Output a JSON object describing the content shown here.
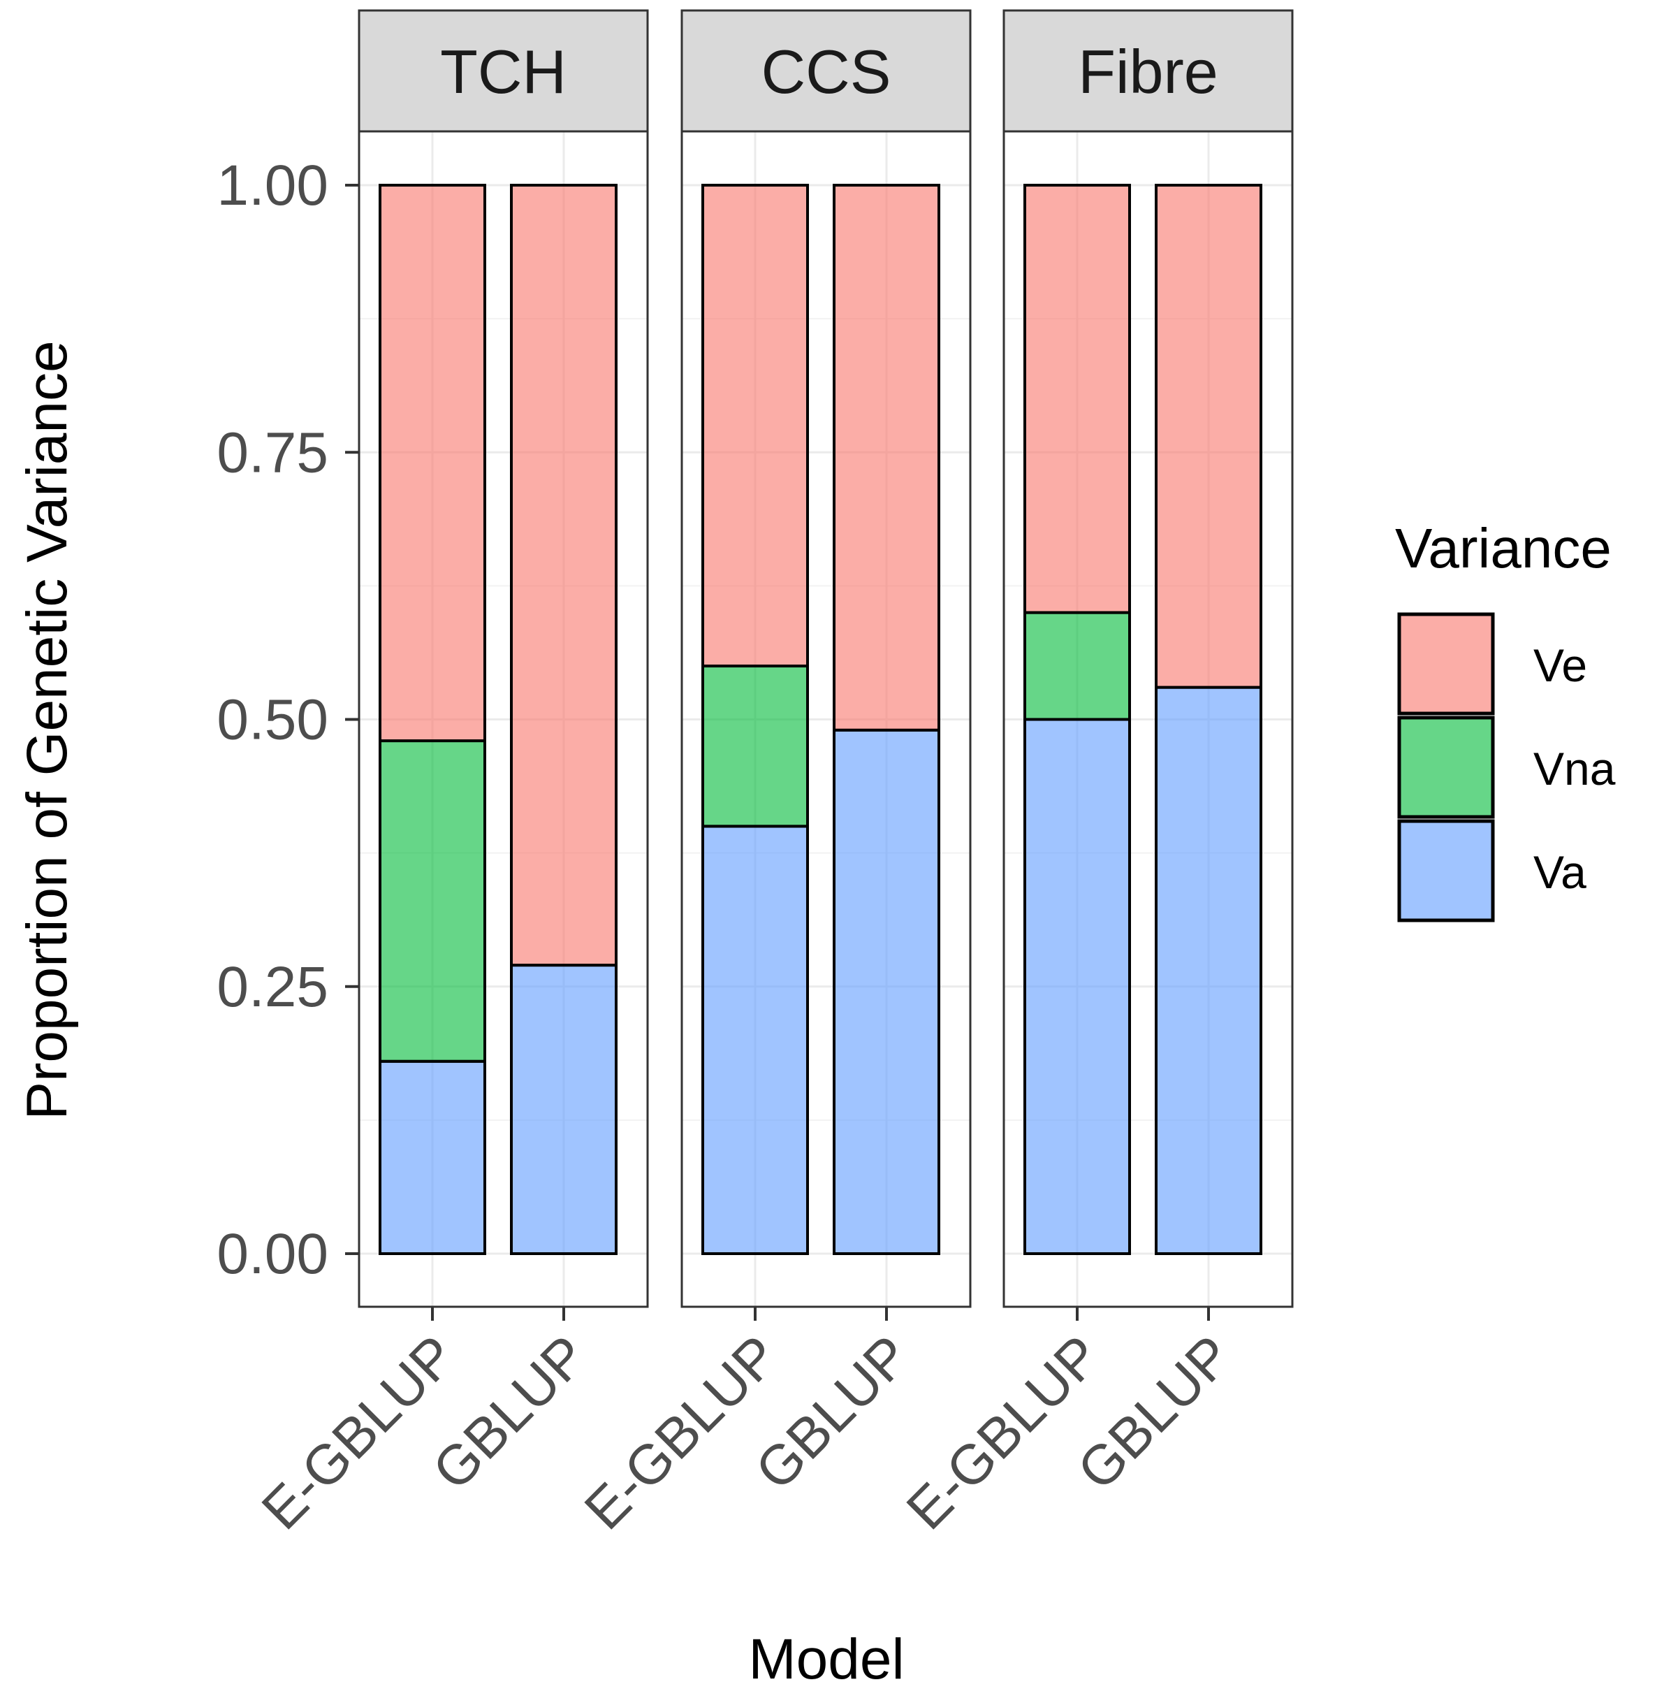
{
  "chart_data": {
    "type": "bar",
    "stacked": true,
    "xlabel": "Model",
    "ylabel": "Proportion of Genetic Variance",
    "ylim": [
      0,
      1
    ],
    "yticks": [
      "0.00",
      "0.25",
      "0.50",
      "0.75",
      "1.00"
    ],
    "ytick_values": [
      0,
      0.25,
      0.5,
      0.75,
      1
    ],
    "grid": true,
    "legend": {
      "title": "Variance",
      "position": "right",
      "entries": [
        {
          "name": "Ve",
          "color": "#F8766D"
        },
        {
          "name": "Vna",
          "color": "#00BA38"
        },
        {
          "name": "Va",
          "color": "#619CFF"
        }
      ]
    },
    "stack_order": [
      "Va",
      "Vna",
      "Ve"
    ],
    "categories": [
      "E-GBLUP",
      "GBLUP"
    ],
    "facets": [
      {
        "name": "TCH",
        "bars": [
          {
            "model": "E-GBLUP",
            "Va": 0.18,
            "Vna": 0.3,
            "Ve": 0.52
          },
          {
            "model": "GBLUP",
            "Va": 0.27,
            "Vna": 0,
            "Ve": 0.73
          }
        ]
      },
      {
        "name": "CCS",
        "bars": [
          {
            "model": "E-GBLUP",
            "Va": 0.4,
            "Vna": 0.15,
            "Ve": 0.45
          },
          {
            "model": "GBLUP",
            "Va": 0.49,
            "Vna": 0,
            "Ve": 0.51
          }
        ]
      },
      {
        "name": "Fibre",
        "bars": [
          {
            "model": "E-GBLUP",
            "Va": 0.5,
            "Vna": 0.1,
            "Ve": 0.4
          },
          {
            "model": "GBLUP",
            "Va": 0.53,
            "Vna": 0,
            "Ve": 0.47
          }
        ]
      }
    ]
  }
}
